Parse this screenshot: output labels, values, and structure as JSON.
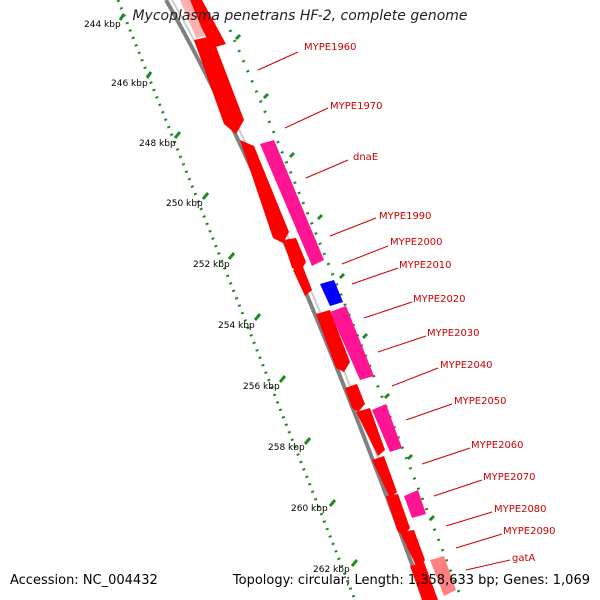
{
  "title": "Mycoplasma penetrans HF-2, complete genome",
  "accession_text": "Accession: NC_004432",
  "summary_text": "Topology: circular; Length: 1,358,633 bp; Genes: 1,069",
  "scale_labels": [
    "244 kbp",
    "246 kbp",
    "248 kbp",
    "250 kbp",
    "252 kbp",
    "254 kbp",
    "256 kbp",
    "258 kbp",
    "260 kbp",
    "262 kbp"
  ],
  "gene_labels": [
    "MYPE1960",
    "MYPE1970",
    "dnaE",
    "MYPE1990",
    "MYPE2000",
    "MYPE2010",
    "MYPE2020",
    "MYPE2030",
    "MYPE2040",
    "MYPE2050",
    "MYPE2060",
    "MYPE2070",
    "MYPE2080",
    "MYPE2090",
    "gatA"
  ],
  "colors": {
    "cds": "#ff0000",
    "cds_light": "#ff8080",
    "rna_pink": "#ff1493",
    "blue_feature": "#0000ff",
    "backbone": "#808080",
    "ticks_green": "#228b22",
    "label_red": "#cc0000"
  }
}
